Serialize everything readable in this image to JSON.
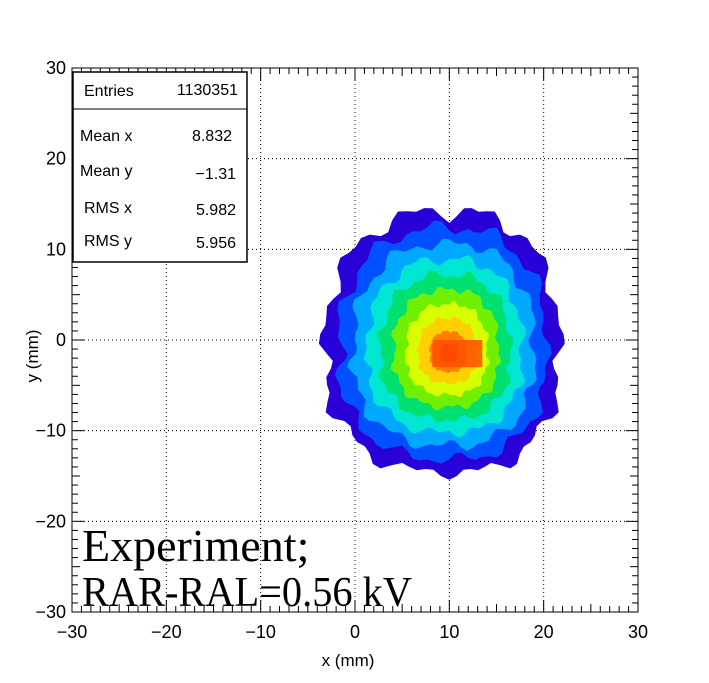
{
  "chart_data": {
    "type": "heatmap",
    "title": "",
    "xlabel": "x (mm)",
    "ylabel": "y (mm)",
    "xlim": [
      -30,
      30
    ],
    "ylim": [
      -30,
      30
    ],
    "x_ticks": [
      "−30",
      "−20",
      "−10",
      "0",
      "10",
      "20",
      "30"
    ],
    "y_ticks": [
      "−30",
      "−20",
      "−10",
      "0",
      "10",
      "20",
      "30"
    ],
    "grid": true,
    "colormap": [
      "#2a00d8",
      "#0050ff",
      "#00a8ff",
      "#00e6d2",
      "#00e070",
      "#70f000",
      "#d8ff00",
      "#ffd000",
      "#ff8000",
      "#ff2000"
    ],
    "distribution": {
      "peak": [
        10,
        -1.5
      ],
      "region_x": [
        -3,
        21.5
      ],
      "region_y": [
        -14.5,
        14
      ]
    },
    "stats_box": {
      "entries_label": "Entries",
      "entries_value": "1130351",
      "rows": [
        {
          "label": "Mean x",
          "value": "8.832"
        },
        {
          "label": "Mean y",
          "value": "−1.31"
        },
        {
          "label": "RMS x",
          "value": "5.982"
        },
        {
          "label": "RMS y",
          "value": "5.956"
        }
      ]
    },
    "annotations": [
      "Experiment;",
      "RAR-RAL=0.56 kV"
    ]
  }
}
